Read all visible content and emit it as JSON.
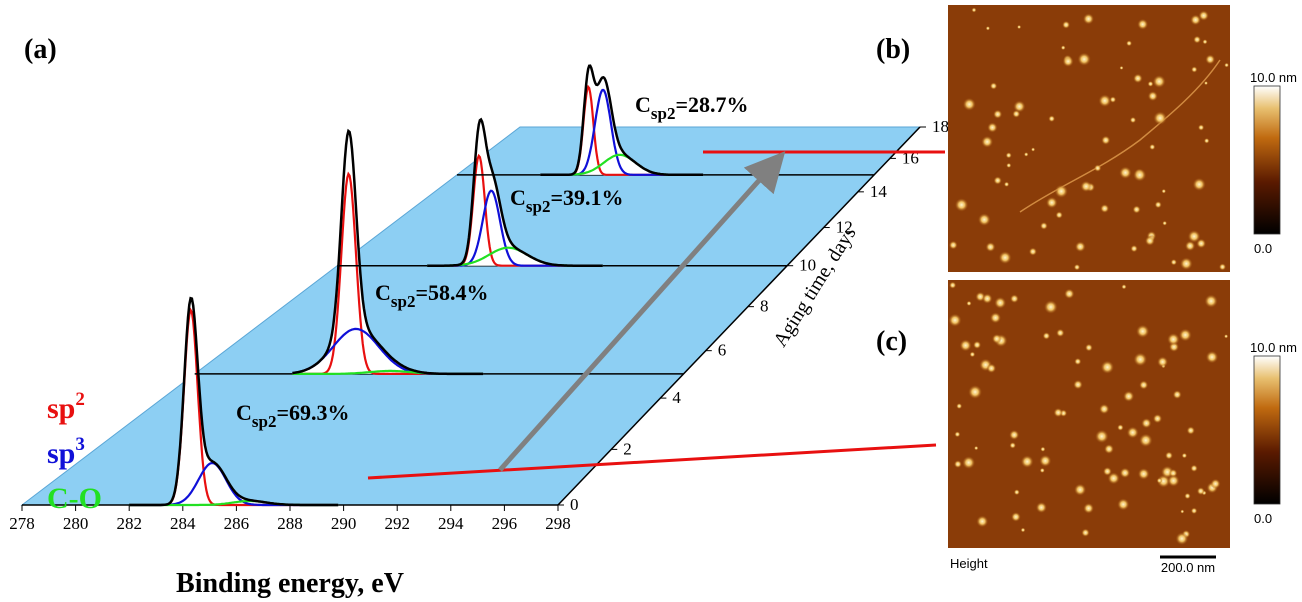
{
  "panels": {
    "a": "(a)",
    "b": "(b)",
    "c": "(c)"
  },
  "chart_data": {
    "type": "waterfall",
    "x_label": "Binding energy, eV",
    "y_label": "Aging time, days",
    "xlim": [
      278,
      298
    ],
    "xticks": [
      278,
      280,
      282,
      284,
      286,
      288,
      290,
      292,
      294,
      296,
      298
    ],
    "ylim": [
      0,
      18
    ],
    "yticks": [
      0,
      2,
      4,
      6,
      8,
      10,
      12,
      14,
      16,
      18
    ],
    "plane_color": "#8dcff3",
    "total_color": "#000000",
    "legend": [
      {
        "name": "sp",
        "sup": "2",
        "color": "#e81010"
      },
      {
        "name": "sp",
        "sup": "3",
        "color": "#1010d8"
      },
      {
        "name": "C-O",
        "color": "#22e022"
      }
    ],
    "spectra": [
      {
        "day": 0,
        "label": {
          "main": "C",
          "sub": "sp2",
          "rest": "=69.3%"
        },
        "components": [
          {
            "center": 284.3,
            "height": 195,
            "fwhm": 0.6
          },
          {
            "center": 285.1,
            "height": 42,
            "fwhm": 1.2
          },
          {
            "center": 286.5,
            "height": 4,
            "fwhm": 1.5
          }
        ]
      },
      {
        "day": 5,
        "label": {
          "main": "C",
          "sub": "sp2",
          "rest": "=58.4%"
        },
        "components": [
          {
            "center": 284.3,
            "height": 200,
            "fwhm": 0.7
          },
          {
            "center": 284.6,
            "height": 45,
            "fwhm": 2.2
          },
          {
            "center": 286,
            "height": 3,
            "fwhm": 2
          }
        ]
      },
      {
        "day": 10,
        "label": {
          "main": "C",
          "sub": "sp2",
          "rest": "=39.1%"
        },
        "components": [
          {
            "center": 284.3,
            "height": 110,
            "fwhm": 0.6
          },
          {
            "center": 284.85,
            "height": 75,
            "fwhm": 0.9
          },
          {
            "center": 285.6,
            "height": 18,
            "fwhm": 2
          }
        ]
      },
      {
        "day": 15,
        "label": {
          "main": "C",
          "sub": "sp2",
          "rest": "=28.7%"
        },
        "components": [
          {
            "center": 284.3,
            "height": 88,
            "fwhm": 0.55
          },
          {
            "center": 285.0,
            "height": 85,
            "fwhm": 0.9
          },
          {
            "center": 285.8,
            "height": 20,
            "fwhm": 1.8
          }
        ]
      }
    ]
  },
  "afm": {
    "colorbar_max": "10.0 nm",
    "colorbar_min": "0.0",
    "channel": "Height",
    "scale_bar": "200.0 nm"
  }
}
